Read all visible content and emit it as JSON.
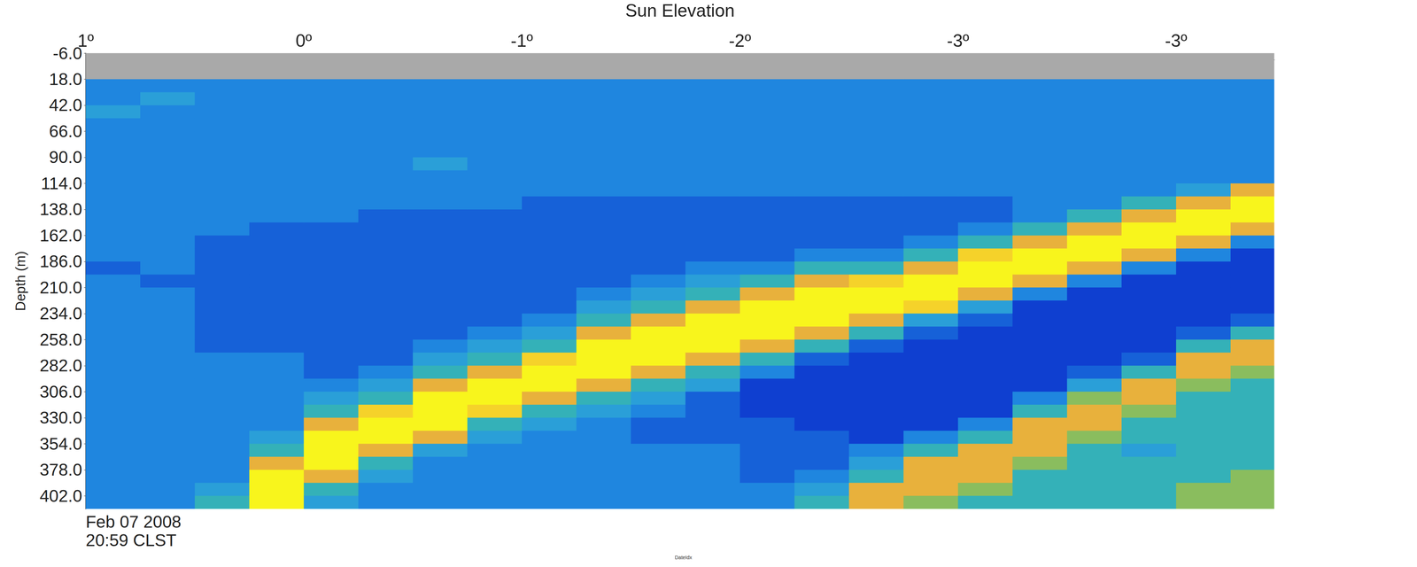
{
  "chart_data": {
    "type": "heatmap",
    "x_label": "Sun Elevation",
    "y_label": "Depth (m)",
    "bottom_label": "DateIdx",
    "annotation": [
      "Feb 07 2008",
      "20:59 CLST"
    ],
    "xlim": [
      0,
      5.45
    ],
    "xticks": [
      {
        "value": 0,
        "label": "1º"
      },
      {
        "value": 1,
        "label": "0º"
      },
      {
        "value": 2,
        "label": "-1º"
      },
      {
        "value": 3,
        "label": "-2º"
      },
      {
        "value": 4,
        "label": "-3º"
      },
      {
        "value": 5,
        "label": "-3º"
      }
    ],
    "ylim": [
      -6,
      414
    ],
    "yticks": [
      {
        "value": -6,
        "label": "-6.0"
      },
      {
        "value": 18,
        "label": "18.0"
      },
      {
        "value": 42,
        "label": "42.0"
      },
      {
        "value": 66,
        "label": "66.0"
      },
      {
        "value": 90,
        "label": "90.0"
      },
      {
        "value": 114,
        "label": "114.0"
      },
      {
        "value": 138,
        "label": "138.0"
      },
      {
        "value": 162,
        "label": "162.0"
      },
      {
        "value": 186,
        "label": "186.0"
      },
      {
        "value": 210,
        "label": "210.0"
      },
      {
        "value": 234,
        "label": "234.0"
      },
      {
        "value": 258,
        "label": "258.0"
      },
      {
        "value": 282,
        "label": "282.0"
      },
      {
        "value": 306,
        "label": "306.0"
      },
      {
        "value": 330,
        "label": "330.0"
      },
      {
        "value": 354,
        "label": "354.0"
      },
      {
        "value": 378,
        "label": "378.0"
      },
      {
        "value": 402,
        "label": "402.0"
      }
    ],
    "grid": false,
    "color_range": [
      1,
      9
    ],
    "x": [
      0.125,
      0.375,
      0.625,
      0.875,
      1.125,
      1.375,
      1.625,
      1.875,
      2.125,
      2.375,
      2.625,
      2.875,
      3.125,
      3.375,
      3.625,
      3.875,
      4.125,
      4.375,
      4.625,
      4.875,
      5.125,
      5.375
    ],
    "y": [
      0,
      12,
      24,
      36,
      48,
      60,
      72,
      84,
      96,
      108,
      120,
      132,
      144,
      156,
      168,
      180,
      192,
      204,
      216,
      228,
      240,
      252,
      264,
      276,
      288,
      300,
      312,
      324,
      336,
      348,
      360,
      372,
      384,
      396,
      408
    ],
    "values": [
      [
        null,
        null,
        3,
        3,
        4,
        3,
        3,
        3,
        3,
        3,
        3,
        3,
        3,
        3,
        3,
        3,
        2,
        3,
        3,
        3,
        3,
        3,
        3,
        3,
        3,
        3,
        3,
        3,
        3,
        3,
        3,
        3,
        3,
        3,
        3
      ],
      [
        null,
        null,
        3,
        4,
        3,
        3,
        3,
        3,
        3,
        3,
        3,
        3,
        3,
        3,
        3,
        3,
        3,
        2,
        3,
        3,
        3,
        3,
        3,
        3,
        3,
        3,
        3,
        3,
        3,
        3,
        3,
        3,
        3,
        3,
        3
      ],
      [
        null,
        null,
        3,
        3,
        3,
        3,
        3,
        3,
        3,
        3,
        3,
        3,
        3,
        3,
        2,
        2,
        2,
        2,
        2,
        2,
        2,
        2,
        2,
        3,
        3,
        3,
        3,
        3,
        3,
        3,
        3,
        3,
        3,
        4,
        5
      ],
      [
        null,
        null,
        3,
        3,
        3,
        3,
        3,
        3,
        3,
        3,
        3,
        3,
        3,
        2,
        2,
        2,
        2,
        2,
        2,
        2,
        2,
        2,
        2,
        3,
        3,
        3,
        3,
        3,
        3,
        4,
        5,
        7,
        9,
        9,
        9
      ],
      [
        null,
        null,
        3,
        3,
        3,
        3,
        3,
        3,
        3,
        3,
        3,
        3,
        3,
        2,
        2,
        2,
        2,
        2,
        2,
        2,
        2,
        2,
        2,
        2,
        2,
        3,
        4,
        5,
        7,
        9,
        9,
        9,
        7,
        5,
        4
      ],
      [
        null,
        null,
        3,
        3,
        3,
        3,
        3,
        3,
        3,
        3,
        3,
        3,
        2,
        2,
        2,
        2,
        2,
        2,
        2,
        2,
        2,
        2,
        2,
        2,
        3,
        4,
        5,
        8,
        9,
        9,
        7,
        5,
        4,
        3,
        3
      ],
      [
        null,
        null,
        3,
        3,
        3,
        3,
        3,
        3,
        4,
        3,
        3,
        3,
        2,
        2,
        2,
        2,
        2,
        2,
        2,
        2,
        2,
        2,
        3,
        4,
        5,
        7,
        9,
        9,
        9,
        7,
        4,
        3,
        3,
        3,
        3
      ],
      [
        null,
        null,
        3,
        3,
        3,
        3,
        3,
        3,
        3,
        3,
        3,
        3,
        2,
        2,
        2,
        2,
        2,
        2,
        2,
        2,
        2,
        3,
        4,
        5,
        7,
        9,
        9,
        8,
        5,
        4,
        3,
        3,
        3,
        3,
        3
      ],
      [
        null,
        null,
        3,
        3,
        3,
        3,
        3,
        3,
        3,
        3,
        3,
        2,
        2,
        2,
        2,
        2,
        2,
        2,
        2,
        2,
        3,
        4,
        5,
        8,
        9,
        9,
        7,
        5,
        4,
        3,
        3,
        3,
        3,
        3,
        3
      ],
      [
        null,
        null,
        3,
        3,
        3,
        3,
        3,
        3,
        3,
        3,
        3,
        2,
        2,
        2,
        2,
        2,
        2,
        2,
        3,
        4,
        5,
        7,
        9,
        9,
        9,
        7,
        5,
        4,
        3,
        3,
        3,
        3,
        3,
        3,
        3
      ],
      [
        null,
        null,
        3,
        3,
        3,
        3,
        3,
        3,
        3,
        3,
        3,
        2,
        2,
        2,
        2,
        2,
        2,
        3,
        4,
        5,
        7,
        9,
        9,
        9,
        7,
        5,
        4,
        3,
        2,
        2,
        3,
        3,
        3,
        3,
        3
      ],
      [
        null,
        null,
        3,
        3,
        3,
        3,
        3,
        3,
        3,
        3,
        3,
        2,
        2,
        2,
        2,
        2,
        3,
        4,
        5,
        7,
        9,
        9,
        9,
        7,
        5,
        4,
        2,
        2,
        2,
        2,
        3,
        3,
        3,
        3,
        3
      ],
      [
        null,
        null,
        3,
        3,
        3,
        3,
        3,
        3,
        3,
        3,
        3,
        2,
        2,
        2,
        2,
        2,
        3,
        5,
        7,
        9,
        9,
        9,
        7,
        5,
        3,
        1,
        1,
        1,
        2,
        2,
        2,
        2,
        2,
        3,
        3
      ],
      [
        null,
        null,
        3,
        3,
        3,
        3,
        3,
        3,
        3,
        3,
        3,
        2,
        2,
        2,
        2,
        3,
        5,
        7,
        9,
        9,
        9,
        7,
        5,
        2,
        1,
        1,
        1,
        1,
        1,
        2,
        2,
        2,
        3,
        4,
        5
      ],
      [
        null,
        null,
        3,
        3,
        3,
        3,
        3,
        3,
        3,
        3,
        3,
        2,
        2,
        2,
        2,
        3,
        5,
        8,
        9,
        9,
        7,
        5,
        2,
        1,
        1,
        1,
        1,
        1,
        1,
        1,
        3,
        4,
        5,
        7,
        7
      ],
      [
        null,
        null,
        3,
        3,
        3,
        3,
        3,
        3,
        3,
        3,
        3,
        2,
        2,
        2,
        3,
        5,
        7,
        9,
        9,
        8,
        4,
        2,
        1,
        1,
        1,
        1,
        1,
        1,
        1,
        3,
        5,
        7,
        7,
        7,
        6
      ],
      [
        null,
        null,
        3,
        3,
        3,
        3,
        3,
        3,
        3,
        3,
        3,
        2,
        2,
        3,
        5,
        8,
        9,
        9,
        7,
        4,
        2,
        1,
        1,
        1,
        1,
        1,
        1,
        1,
        3,
        5,
        7,
        7,
        7,
        6,
        5
      ],
      [
        null,
        null,
        3,
        3,
        3,
        3,
        3,
        3,
        3,
        3,
        3,
        3,
        3,
        5,
        7,
        9,
        9,
        7,
        3,
        1,
        1,
        1,
        1,
        1,
        1,
        1,
        3,
        5,
        7,
        7,
        7,
        6,
        5,
        5,
        5
      ],
      [
        null,
        null,
        3,
        3,
        3,
        3,
        3,
        3,
        3,
        3,
        3,
        3,
        5,
        7,
        9,
        9,
        7,
        3,
        1,
        1,
        1,
        1,
        1,
        1,
        2,
        4,
        6,
        7,
        7,
        6,
        5,
        5,
        5,
        5,
        5
      ],
      [
        null,
        null,
        3,
        3,
        3,
        3,
        3,
        3,
        3,
        3,
        3,
        5,
        7,
        9,
        9,
        7,
        3,
        1,
        1,
        1,
        1,
        1,
        1,
        2,
        5,
        7,
        7,
        6,
        5,
        5,
        4,
        5,
        5,
        5,
        5
      ],
      [
        null,
        null,
        3,
        3,
        3,
        3,
        3,
        3,
        3,
        3,
        4,
        7,
        9,
        9,
        7,
        3,
        1,
        1,
        1,
        1,
        1,
        2,
        5,
        7,
        7,
        6,
        5,
        5,
        5,
        5,
        5,
        5,
        5,
        6,
        6
      ],
      [
        null,
        null,
        3,
        3,
        3,
        3,
        3,
        3,
        3,
        3,
        7,
        9,
        9,
        7,
        3,
        1,
        1,
        1,
        1,
        1,
        2,
        5,
        7,
        7,
        6,
        5,
        5,
        5,
        5,
        5,
        5,
        5,
        6,
        6,
        6
      ]
    ]
  }
}
